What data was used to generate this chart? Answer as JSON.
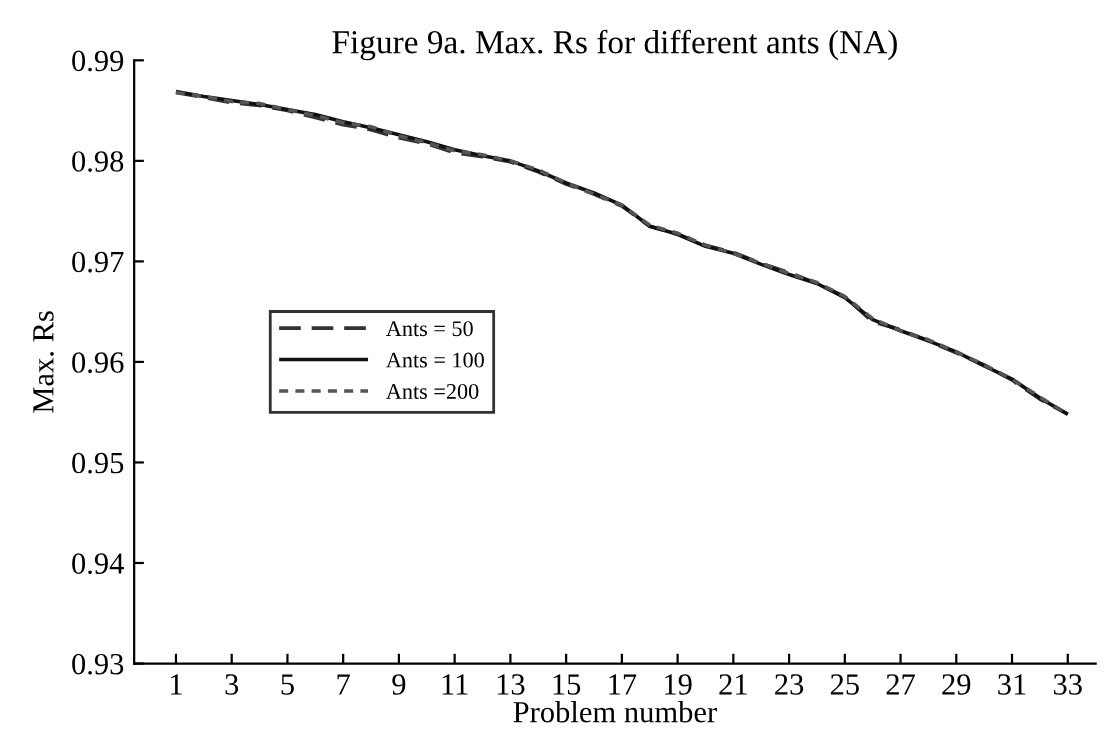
{
  "chart_data": {
    "type": "line",
    "title": "Figure 9a. Max. Rs for different ants (NA)",
    "xlabel": "Problem number",
    "ylabel": "Max. Rs",
    "x": [
      1,
      2,
      3,
      4,
      5,
      6,
      7,
      8,
      9,
      10,
      11,
      12,
      13,
      14,
      15,
      16,
      17,
      18,
      19,
      20,
      21,
      22,
      23,
      24,
      25,
      26,
      27,
      28,
      29,
      30,
      31,
      32,
      33
    ],
    "series": [
      {
        "name": "Ants = 50",
        "color": "#333333",
        "line_style": "dashed",
        "values": [
          0.9868,
          0.9863,
          0.9858,
          0.9855,
          0.985,
          0.9843,
          0.9836,
          0.9831,
          0.9823,
          0.9817,
          0.9808,
          0.9804,
          0.9799,
          0.9789,
          0.9777,
          0.9767,
          0.9755,
          0.9735,
          0.9727,
          0.9716,
          0.9709,
          0.9698,
          0.9689,
          0.9678,
          0.9665,
          0.964,
          0.9632,
          0.9621,
          0.9609,
          0.9597,
          0.9582,
          0.9563,
          0.9548
        ]
      },
      {
        "name": "Ants = 100",
        "color": "#111111",
        "line_style": "solid",
        "values": [
          0.9869,
          0.9864,
          0.986,
          0.9856,
          0.9851,
          0.9846,
          0.9839,
          0.9833,
          0.9826,
          0.9819,
          0.9811,
          0.9805,
          0.98,
          0.979,
          0.9778,
          0.9768,
          0.9756,
          0.9735,
          0.9727,
          0.9715,
          0.9708,
          0.9697,
          0.9687,
          0.9678,
          0.9664,
          0.9642,
          0.9631,
          0.9621,
          0.961,
          0.9596,
          0.9583,
          0.9564,
          0.9548
        ]
      },
      {
        "name": "Ants =200",
        "color": "#555555",
        "line_style": "dotted",
        "values": [
          0.9868,
          0.9864,
          0.9859,
          0.9857,
          0.9851,
          0.9845,
          0.9838,
          0.9834,
          0.9825,
          0.9818,
          0.981,
          0.9806,
          0.98,
          0.9791,
          0.9778,
          0.9767,
          0.9756,
          0.9736,
          0.9728,
          0.9716,
          0.9708,
          0.9698,
          0.9688,
          0.9679,
          0.9665,
          0.9643,
          0.9631,
          0.9622,
          0.961,
          0.9597,
          0.9583,
          0.9565,
          0.9548
        ]
      }
    ],
    "xlim": [
      -0.5,
      34
    ],
    "xticks": [
      1,
      3,
      5,
      7,
      9,
      11,
      13,
      15,
      17,
      19,
      21,
      23,
      25,
      27,
      29,
      31,
      33
    ],
    "ylim": [
      0.93,
      0.99
    ],
    "yticks": [
      0.93,
      0.94,
      0.95,
      0.96,
      0.97,
      0.98,
      0.99
    ],
    "grid": false,
    "legend": "center left",
    "marker": "none"
  }
}
